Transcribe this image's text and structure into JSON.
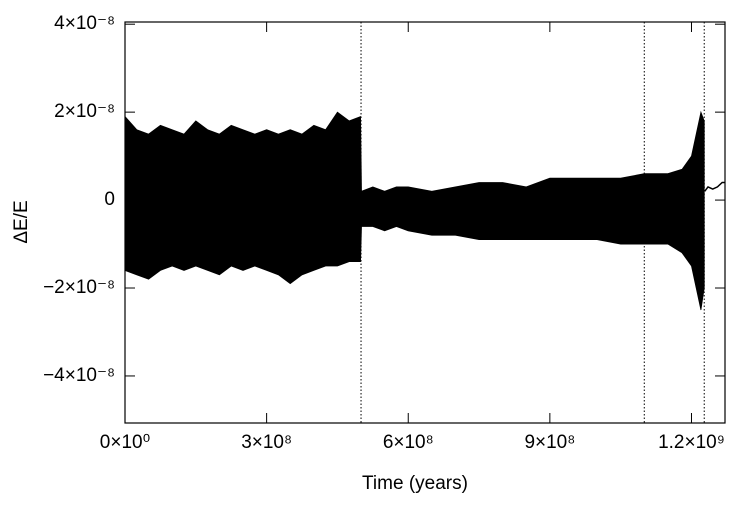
{
  "chart_data": {
    "type": "band",
    "xlabel": "Time (years)",
    "ylabel": "ΔE/E",
    "xlim": [
      0,
      1271000000.0
    ],
    "ylim": [
      -5.07e-08,
      4.05e-08
    ],
    "xticks": [
      {
        "value": 0,
        "label": "0×10⁰"
      },
      {
        "value": 300000000.0,
        "label": "3×10⁸"
      },
      {
        "value": 600000000.0,
        "label": "6×10⁸"
      },
      {
        "value": 900000000.0,
        "label": "9×10⁸"
      },
      {
        "value": 1200000000.0,
        "label": "1.2×10⁹"
      }
    ],
    "yticks": [
      {
        "value": 4e-08,
        "label": "4×10⁻⁸"
      },
      {
        "value": 2e-08,
        "label": "2×10⁻⁸"
      },
      0,
      {
        "value": -2e-08,
        "label": "−2×10⁻⁸"
      },
      {
        "value": -4e-08,
        "label": "−4×10⁻⁸"
      }
    ],
    "x": [
      0,
      25000000.0,
      50000000.0,
      75000000.0,
      100000000.0,
      125000000.0,
      150000000.0,
      175000000.0,
      200000000.0,
      225000000.0,
      250000000.0,
      275000000.0,
      300000000.0,
      325000000.0,
      350000000.0,
      375000000.0,
      400000000.0,
      425000000.0,
      450000000.0,
      475000000.0,
      499000000.0,
      501000000.0,
      525000000.0,
      550000000.0,
      575000000.0,
      600000000.0,
      650000000.0,
      700000000.0,
      750000000.0,
      800000000.0,
      850000000.0,
      900000000.0,
      950000000.0,
      1000000000.0,
      1050000000.0,
      1100000000.0,
      1150000000.0,
      1180000000.0,
      1200000000.0,
      1210000000.0,
      1220000000.0,
      1227000000.0
    ],
    "series": [
      {
        "color": "#000000",
        "values": [
          1.9e-08,
          1.6e-08,
          1.5e-08,
          1.7e-08,
          1.6e-08,
          1.5e-08,
          1.8e-08,
          1.6e-08,
          1.5e-08,
          1.7e-08,
          1.6e-08,
          1.5e-08,
          1.6e-08,
          1.5e-08,
          1.6e-08,
          1.5e-08,
          1.7e-08,
          1.6e-08,
          2e-08,
          1.8e-08,
          1.9e-08,
          2e-09,
          3e-09,
          2e-09,
          3e-09,
          3e-09,
          2e-09,
          3e-09,
          4e-09,
          4e-09,
          3e-09,
          5e-09,
          5e-09,
          5e-09,
          5e-09,
          6e-09,
          6e-09,
          7e-09,
          1e-08,
          1.5e-08,
          2e-08,
          1.8e-08
        ]
      },
      {
        "color": "#000000",
        "values": [
          -1.6e-08,
          -1.7e-08,
          -1.8e-08,
          -1.6e-08,
          -1.5e-08,
          -1.6e-08,
          -1.5e-08,
          -1.6e-08,
          -1.7e-08,
          -1.5e-08,
          -1.6e-08,
          -1.5e-08,
          -1.6e-08,
          -1.7e-08,
          -1.9e-08,
          -1.7e-08,
          -1.6e-08,
          -1.5e-08,
          -1.5e-08,
          -1.4e-08,
          -1.4e-08,
          -6e-09,
          -6e-09,
          -7e-09,
          -6e-09,
          -7e-09,
          -8e-09,
          -8e-09,
          -9e-09,
          -9e-09,
          -9e-09,
          -9e-09,
          -9e-09,
          -9e-09,
          -1e-08,
          -1e-08,
          -1e-08,
          -1.2e-08,
          -1.5e-08,
          -2e-08,
          -2.5e-08,
          -2e-08
        ]
      }
    ],
    "tail": {
      "color": "#000000",
      "x": [
        1228000000.0,
        1235000000.0,
        1245000000.0,
        1255000000.0,
        1265000000.0,
        1271000000.0
      ],
      "values": [
        2e-09,
        3e-09,
        2.5e-09,
        3e-09,
        4e-09,
        4e-09
      ]
    },
    "vlines": [
      500000000.0,
      1100000000.0,
      1227000000.0
    ]
  }
}
